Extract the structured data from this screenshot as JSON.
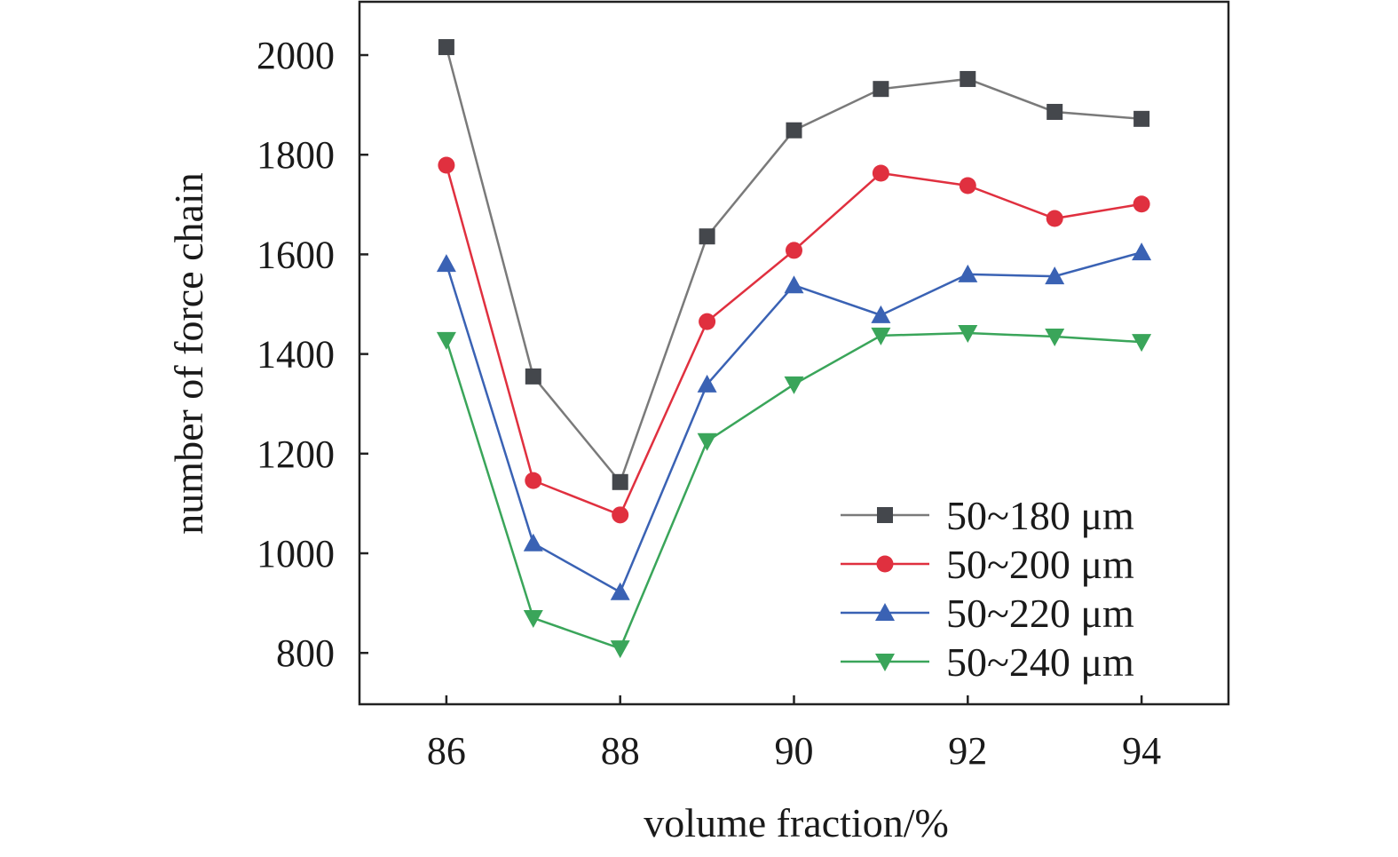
{
  "chart_data": {
    "type": "line",
    "title": "",
    "xlabel": "volume fraction/%",
    "ylabel": "number of force chain",
    "xlim": [
      85,
      95
    ],
    "ylim": [
      697,
      2107
    ],
    "xticks": [
      "86",
      "88",
      "90",
      "92",
      "94"
    ],
    "yticks": [
      "800",
      "1000",
      "1200",
      "1400",
      "1600",
      "1800",
      "2000"
    ],
    "grid": false,
    "legend_position": "bottom-right",
    "x": [
      86,
      87,
      88,
      89,
      90,
      91,
      92,
      93,
      94
    ],
    "series": [
      {
        "name": "50~180 μm",
        "marker": "square",
        "color": "#44474c",
        "line_color": "#7a7a7a",
        "values": [
          2016,
          1355,
          1143,
          1636,
          1849,
          1932,
          1952,
          1886,
          1872
        ]
      },
      {
        "name": "50~200 μm",
        "marker": "circle",
        "color": "#e0303f",
        "line_color": "#e0303f",
        "values": [
          1779,
          1146,
          1077,
          1465,
          1608,
          1763,
          1738,
          1672,
          1701
        ]
      },
      {
        "name": "50~220 μm",
        "marker": "triangle-up",
        "color": "#3a62b4",
        "line_color": "#3a62b4",
        "values": [
          1581,
          1020,
          922,
          1339,
          1538,
          1478,
          1560,
          1556,
          1604
        ]
      },
      {
        "name": "50~240 μm",
        "marker": "triangle-down",
        "color": "#3aa55a",
        "line_color": "#3aa55a",
        "values": [
          1428,
          870,
          809,
          1225,
          1339,
          1437,
          1442,
          1435,
          1424
        ]
      }
    ]
  }
}
